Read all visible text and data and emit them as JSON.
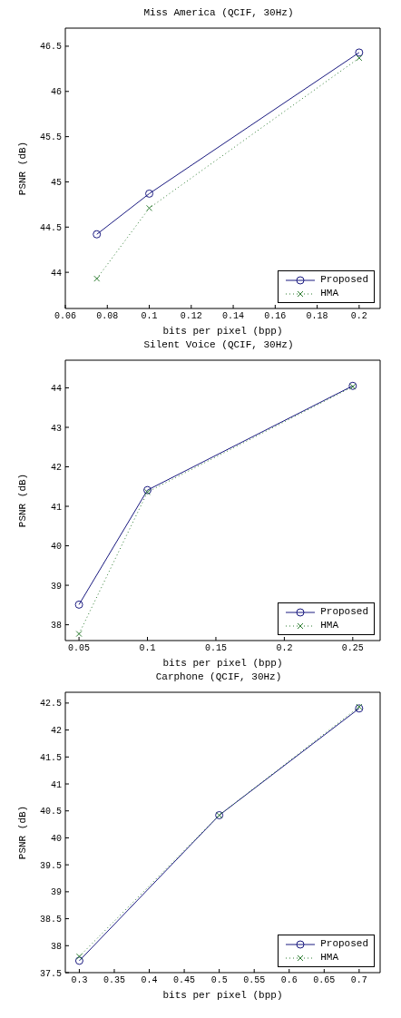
{
  "chart_data": [
    {
      "type": "line",
      "title": "Miss America (QCIF, 30Hz)",
      "xlabel": "bits per pixel (bpp)",
      "ylabel": "PSNR (dB)",
      "x": [
        0.075,
        0.1,
        0.2
      ],
      "xlim": [
        0.06,
        0.21
      ],
      "xticks": [
        0.06,
        0.08,
        0.1,
        0.12,
        0.14,
        0.16,
        0.18,
        0.2
      ],
      "ylim": [
        43.6,
        46.7
      ],
      "yticks": [
        44,
        44.5,
        45,
        45.5,
        46,
        46.5
      ],
      "grid": false,
      "legend": "bottom right",
      "series": [
        {
          "name": "Proposed",
          "color": "#1a1a80",
          "values": [
            44.42,
            44.87,
            46.43
          ],
          "marker": "circle",
          "line_style": "solid"
        },
        {
          "name": "HMA",
          "color": "#2e7d32",
          "values": [
            43.93,
            44.71,
            46.37
          ],
          "marker": "cross",
          "line_style": "dotted"
        }
      ]
    },
    {
      "type": "line",
      "title": "Silent Voice (QCIF, 30Hz)",
      "xlabel": "bits per pixel (bpp)",
      "ylabel": "PSNR (dB)",
      "x": [
        0.05,
        0.1,
        0.25
      ],
      "xlim": [
        0.04,
        0.27
      ],
      "xticks": [
        0.05,
        0.1,
        0.15,
        0.2,
        0.25
      ],
      "ylim": [
        37.6,
        44.7
      ],
      "yticks": [
        38,
        39,
        40,
        41,
        42,
        43,
        44
      ],
      "grid": false,
      "legend": "bottom right",
      "series": [
        {
          "name": "Proposed",
          "color": "#1a1a80",
          "values": [
            38.51,
            41.41,
            44.05
          ],
          "marker": "circle",
          "line_style": "solid"
        },
        {
          "name": "HMA",
          "color": "#2e7d32",
          "values": [
            37.77,
            41.36,
            44.03
          ],
          "marker": "cross",
          "line_style": "dotted"
        }
      ]
    },
    {
      "type": "line",
      "title": "Carphone (QCIF, 30Hz)",
      "xlabel": "bits per pixel (bpp)",
      "ylabel": "PSNR (dB)",
      "x": [
        0.3,
        0.5,
        0.7
      ],
      "xlim": [
        0.28,
        0.73
      ],
      "xticks": [
        0.3,
        0.35,
        0.4,
        0.45,
        0.5,
        0.55,
        0.6,
        0.65,
        0.7
      ],
      "ylim": [
        37.5,
        42.7
      ],
      "yticks": [
        37.5,
        38,
        38.5,
        39,
        39.5,
        40,
        40.5,
        41,
        41.5,
        42,
        42.5
      ],
      "grid": false,
      "legend": "bottom right",
      "series": [
        {
          "name": "Proposed",
          "color": "#1a1a80",
          "values": [
            37.72,
            40.42,
            42.4
          ],
          "marker": "circle",
          "line_style": "solid"
        },
        {
          "name": "HMA",
          "color": "#2e7d32",
          "values": [
            37.8,
            40.42,
            42.43
          ],
          "marker": "cross",
          "line_style": "dotted"
        }
      ]
    }
  ]
}
